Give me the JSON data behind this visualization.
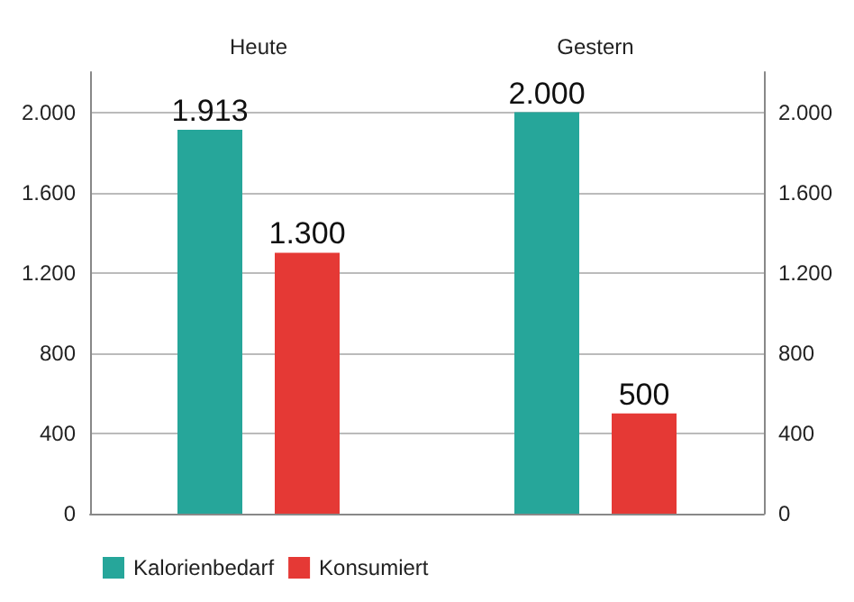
{
  "chart_data": {
    "type": "bar",
    "categories": [
      "Heute",
      "Gestern"
    ],
    "series": [
      {
        "name": "Kalorienbedarf",
        "color": "#26a69a",
        "values": [
          1913,
          2000
        ],
        "value_labels": [
          "1.913",
          "2.000"
        ]
      },
      {
        "name": "Konsumiert",
        "color": "#e53935",
        "values": [
          1300,
          500
        ],
        "value_labels": [
          "1.300",
          "500"
        ]
      }
    ],
    "ylim": [
      0,
      2200
    ],
    "yticks": [
      0,
      400,
      800,
      {
        "value": 1200,
        "label": "1.200"
      },
      {
        "value": 1600,
        "label": "1.600"
      },
      {
        "value": 2000,
        "label": "2.000"
      }
    ],
    "y2lim": [
      0,
      2200
    ],
    "y2ticks": [
      0,
      400,
      800,
      {
        "value": 1200,
        "label": "1.200"
      },
      {
        "value": 1600,
        "label": "1.600"
      },
      {
        "value": 2000,
        "label": "2.000"
      }
    ],
    "grid": "y",
    "legend": "bottom left"
  }
}
